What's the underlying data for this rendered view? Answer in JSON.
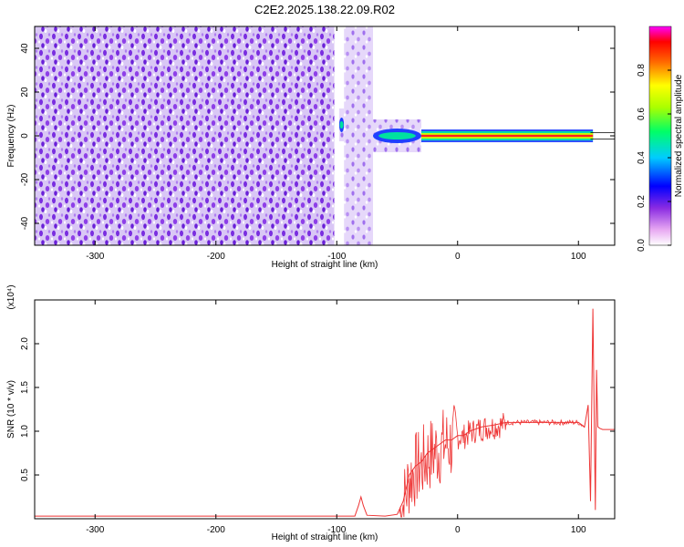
{
  "title": "C2E2.2025.138.22.09.R02",
  "chart_data": [
    {
      "type": "heatmap",
      "xlabel": "Height of straight line (km)",
      "ylabel": "Frequency (Hz)",
      "xlim": [
        -350,
        130
      ],
      "ylim": [
        -50,
        50
      ],
      "x_ticks": [
        -300,
        -200,
        -100,
        0,
        100
      ],
      "x_tick_labels": [
        "-300",
        "-200",
        "-100",
        "0",
        "100"
      ],
      "y_ticks": [
        -40,
        -20,
        0,
        20,
        40
      ],
      "y_tick_labels": [
        "-40",
        "-20",
        "0",
        "20",
        "40"
      ],
      "colorbar": {
        "label": "Normalized spectral amplitude",
        "range": [
          0,
          1
        ],
        "ticks": [
          0.0,
          0.2,
          0.4,
          0.6,
          0.8
        ],
        "tick_labels": [
          "0.0",
          "0.2",
          "0.4",
          "0.6",
          "0.8"
        ],
        "colormap": "rainbow (white-violet-blue-cyan-green-yellow-red-magenta)"
      },
      "regions": [
        {
          "x_range": [
            -350,
            -102
          ],
          "description_freq_range": [
            -50,
            50
          ],
          "amplitude_level": 0.1
        },
        {
          "x_range": [
            -102,
            -98
          ],
          "freq_range": [
            -50,
            50
          ],
          "amplitude_level": 0.0
        },
        {
          "x_range": [
            -98,
            -94
          ],
          "center_freq": 5,
          "amplitude_level": 0.3
        },
        {
          "x_range": [
            -94,
            -70
          ],
          "freq_range": [
            -50,
            50
          ],
          "amplitude_level": 0.08
        },
        {
          "x_range": [
            -70,
            -30
          ],
          "center_freq": 0,
          "amplitude_level": 0.4
        },
        {
          "x_range": [
            -30,
            112
          ],
          "center_freq": 0,
          "amplitude_level": 0.9
        }
      ],
      "grid": false
    },
    {
      "type": "line",
      "xlabel": "Height of straight line (km)",
      "ylabel": "SNR (10 * v/v)",
      "y_scale_note": "(x10⁴)",
      "xlim": [
        -350,
        130
      ],
      "ylim": [
        0,
        2.5
      ],
      "x_ticks": [
        -300,
        -200,
        -100,
        0,
        100
      ],
      "x_tick_labels": [
        "-300",
        "-200",
        "-100",
        "0",
        "100"
      ],
      "y_ticks": [
        0.5,
        1.0,
        1.5,
        2.0
      ],
      "y_tick_labels": [
        "0.5",
        "1.0",
        "1.5",
        "2.0"
      ],
      "series": [
        {
          "color": "#ee3333",
          "x": [
            -350,
            -300,
            -250,
            -200,
            -150,
            -100,
            -85,
            -82,
            -80,
            -78,
            -75,
            -60,
            -50,
            -45,
            -40,
            -35,
            -30,
            -25,
            -20,
            -15,
            -10,
            -5,
            0,
            5,
            10,
            20,
            30,
            40,
            50,
            60,
            70,
            80,
            90,
            100,
            105,
            108,
            110,
            112,
            113,
            114,
            115,
            116,
            118,
            120,
            125,
            130
          ],
          "y": [
            0.03,
            0.03,
            0.03,
            0.03,
            0.03,
            0.03,
            0.03,
            0.15,
            0.25,
            0.15,
            0.04,
            0.03,
            0.05,
            0.2,
            0.5,
            0.6,
            0.65,
            0.75,
            0.8,
            0.85,
            0.9,
            0.9,
            0.95,
            0.95,
            1.0,
            1.05,
            1.07,
            1.1,
            1.1,
            1.1,
            1.1,
            1.1,
            1.1,
            1.1,
            1.05,
            1.3,
            0.2,
            2.4,
            1.2,
            0.1,
            1.7,
            1.05,
            1.03,
            1.02,
            1.02,
            1.02
          ]
        }
      ],
      "grid": false
    }
  ]
}
